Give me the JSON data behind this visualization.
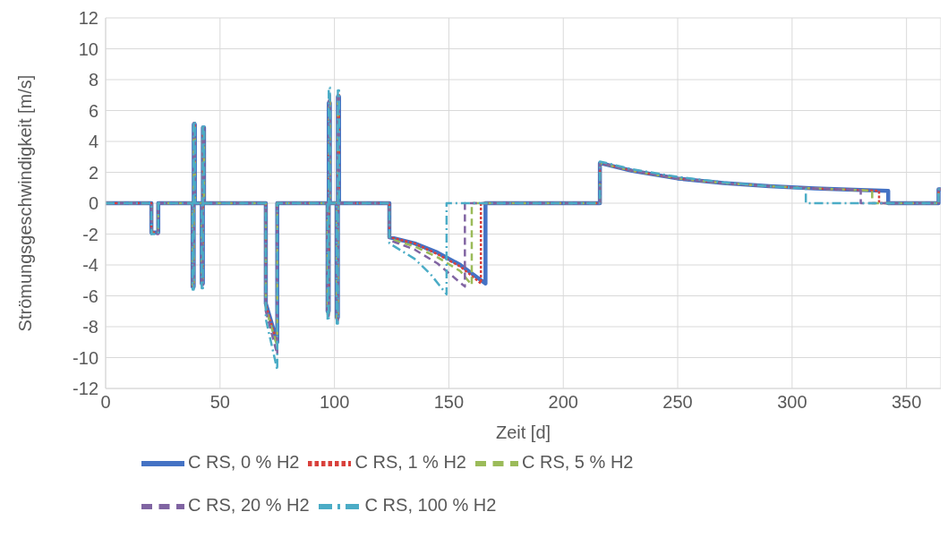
{
  "chart_data": {
    "type": "line",
    "xlabel": "Zeit [d]",
    "ylabel": "Strömungsgeschwindigkeit [m/s]",
    "xlim": [
      0,
      365
    ],
    "xticks": [
      0,
      50,
      100,
      150,
      200,
      250,
      300,
      350
    ],
    "ylim": [
      -12,
      12
    ],
    "yticks": [
      -12,
      -10,
      -8,
      -6,
      -4,
      -2,
      0,
      2,
      4,
      6,
      8,
      10,
      12
    ],
    "grid": true,
    "legend": "bottom",
    "marker": "none",
    "series": [
      {
        "name": "C RS, 0 % H2",
        "color": "#4472c4",
        "line_style": "solid",
        "x": [
          0,
          20,
          20,
          23,
          23,
          38,
          38,
          38.5,
          38.5,
          39,
          39,
          42,
          42,
          42.5,
          42.5,
          43,
          43,
          70,
          70,
          75,
          75,
          97,
          97,
          97.5,
          97.5,
          98,
          98,
          101,
          101,
          101.5,
          101.5,
          102,
          102,
          124,
          124,
          135,
          145,
          155,
          166,
          166,
          216,
          216,
          230,
          250,
          270,
          290,
          310,
          330,
          342,
          342,
          364,
          364,
          365
        ],
        "values": [
          0,
          0,
          -1.9,
          -1.9,
          0,
          0,
          -5.4,
          -5.4,
          5.1,
          5.1,
          0,
          0,
          -5.2,
          -5.2,
          4.9,
          4.9,
          0,
          0,
          -6.5,
          -9,
          0,
          0,
          -7,
          -7,
          6.5,
          6.5,
          0,
          0,
          -7.4,
          -7.4,
          6.9,
          6.9,
          0,
          0,
          -2.2,
          -2.6,
          -3.2,
          -4,
          -5.2,
          0,
          0,
          2.6,
          2.1,
          1.6,
          1.3,
          1.1,
          0.95,
          0.85,
          0.8,
          0,
          0,
          0.9,
          0.9
        ]
      },
      {
        "name": "C RS, 1 % H2",
        "color": "#d9403b",
        "line_style": "dotted",
        "x": [
          0,
          20,
          20,
          23,
          23,
          38,
          38,
          38.5,
          38.5,
          39,
          39,
          42,
          42,
          42.5,
          42.5,
          43,
          43,
          70,
          70,
          75,
          75,
          97,
          97,
          97.5,
          97.5,
          98,
          98,
          101,
          101,
          101.5,
          101.5,
          102,
          102,
          124,
          124,
          135,
          145,
          155,
          164,
          164,
          216,
          216,
          230,
          250,
          270,
          290,
          310,
          330,
          338,
          338,
          364,
          364,
          365
        ],
        "values": [
          0,
          0,
          -1.9,
          -1.9,
          0,
          0,
          -5.4,
          -5.4,
          5.1,
          5.1,
          0,
          0,
          -5.2,
          -5.2,
          4.9,
          4.9,
          0,
          0,
          -6.6,
          -9.1,
          0,
          0,
          -7.1,
          -7.1,
          6.6,
          6.6,
          0,
          0,
          -7.5,
          -7.5,
          7,
          7,
          0,
          0,
          -2.2,
          -2.6,
          -3.3,
          -4.1,
          -5.2,
          0,
          0,
          2.6,
          2.1,
          1.6,
          1.3,
          1.1,
          0.95,
          0.85,
          0.8,
          0,
          0,
          0.9,
          0.9
        ]
      },
      {
        "name": "C RS, 5 % H2",
        "color": "#9bbb59",
        "line_style": "dashed",
        "x": [
          0,
          20,
          20,
          23,
          23,
          38,
          38,
          38.5,
          38.5,
          39,
          39,
          42,
          42,
          42.5,
          42.5,
          43,
          43,
          70,
          70,
          75,
          75,
          97,
          97,
          97.5,
          97.5,
          98,
          98,
          101,
          101,
          101.5,
          101.5,
          102,
          102,
          124,
          124,
          135,
          145,
          155,
          160,
          160,
          216,
          216,
          230,
          250,
          270,
          290,
          310,
          330,
          335,
          335,
          364,
          364,
          365
        ],
        "values": [
          0,
          0,
          -1.9,
          -1.9,
          0,
          0,
          -5.4,
          -5.4,
          5.1,
          5.1,
          0,
          0,
          -5.2,
          -5.2,
          4.9,
          4.9,
          0,
          0,
          -6.8,
          -9.3,
          0,
          0,
          -7.2,
          -7.2,
          6.8,
          6.8,
          0,
          0,
          -7.5,
          -7.5,
          7,
          7,
          0,
          0,
          -2.3,
          -2.8,
          -3.5,
          -4.4,
          -5.3,
          0,
          0,
          2.6,
          2.1,
          1.6,
          1.3,
          1.1,
          0.95,
          0.85,
          0.8,
          0,
          0,
          0.9,
          0.9
        ]
      },
      {
        "name": "C RS, 20 % H2",
        "color": "#8064a2",
        "line_style": "dashed",
        "x": [
          0,
          20,
          20,
          23,
          23,
          38,
          38,
          38.5,
          38.5,
          39,
          39,
          42,
          42,
          42.5,
          42.5,
          43,
          43,
          70,
          70,
          75,
          75,
          97,
          97,
          97.5,
          97.5,
          98,
          98,
          101,
          101,
          101.5,
          101.5,
          102,
          102,
          124,
          124,
          135,
          145,
          157,
          157,
          216,
          216,
          230,
          250,
          270,
          290,
          310,
          330,
          330,
          364,
          364,
          365
        ],
        "values": [
          0,
          0,
          -2,
          -2,
          0,
          0,
          -5.5,
          -5.5,
          5.2,
          5.2,
          0,
          0,
          -5.3,
          -5.3,
          5,
          5,
          0,
          0,
          -7,
          -9.8,
          0,
          0,
          -7.3,
          -7.3,
          7,
          7,
          0,
          0,
          -7.6,
          -7.6,
          7.1,
          7.1,
          0,
          0,
          -2.4,
          -3,
          -3.9,
          -5.4,
          0,
          0,
          2.6,
          2.1,
          1.6,
          1.3,
          1.1,
          0.95,
          0.85,
          0,
          0,
          0.9,
          0.9
        ]
      },
      {
        "name": "C RS, 100 % H2",
        "color": "#4bacc6",
        "line_style": "dashdot",
        "x": [
          0,
          20,
          20,
          23,
          23,
          38,
          38,
          38.5,
          38.5,
          39,
          39,
          42,
          42,
          42.5,
          42.5,
          43,
          43,
          70,
          70,
          75,
          75,
          97,
          97,
          97.5,
          97.5,
          98,
          98,
          101,
          101,
          101.5,
          101.5,
          102,
          102,
          124,
          124,
          135,
          142,
          149,
          149,
          216,
          216,
          230,
          250,
          270,
          290,
          306,
          306,
          364,
          364,
          365
        ],
        "values": [
          0,
          0,
          -2,
          -2,
          0,
          0,
          -5.6,
          -5.6,
          5.3,
          5.3,
          0,
          0,
          -5.5,
          -5.5,
          5.1,
          5.1,
          0,
          0,
          -7.5,
          -10.8,
          0,
          0,
          -7.6,
          -7.6,
          7.5,
          7.5,
          0,
          0,
          -7.8,
          -7.8,
          7.3,
          7.3,
          0,
          0,
          -2.6,
          -3.6,
          -4.6,
          -5.9,
          0,
          0,
          2.7,
          2.2,
          1.7,
          1.35,
          1.1,
          0.95,
          0,
          0,
          0.9,
          0.9
        ]
      }
    ]
  }
}
